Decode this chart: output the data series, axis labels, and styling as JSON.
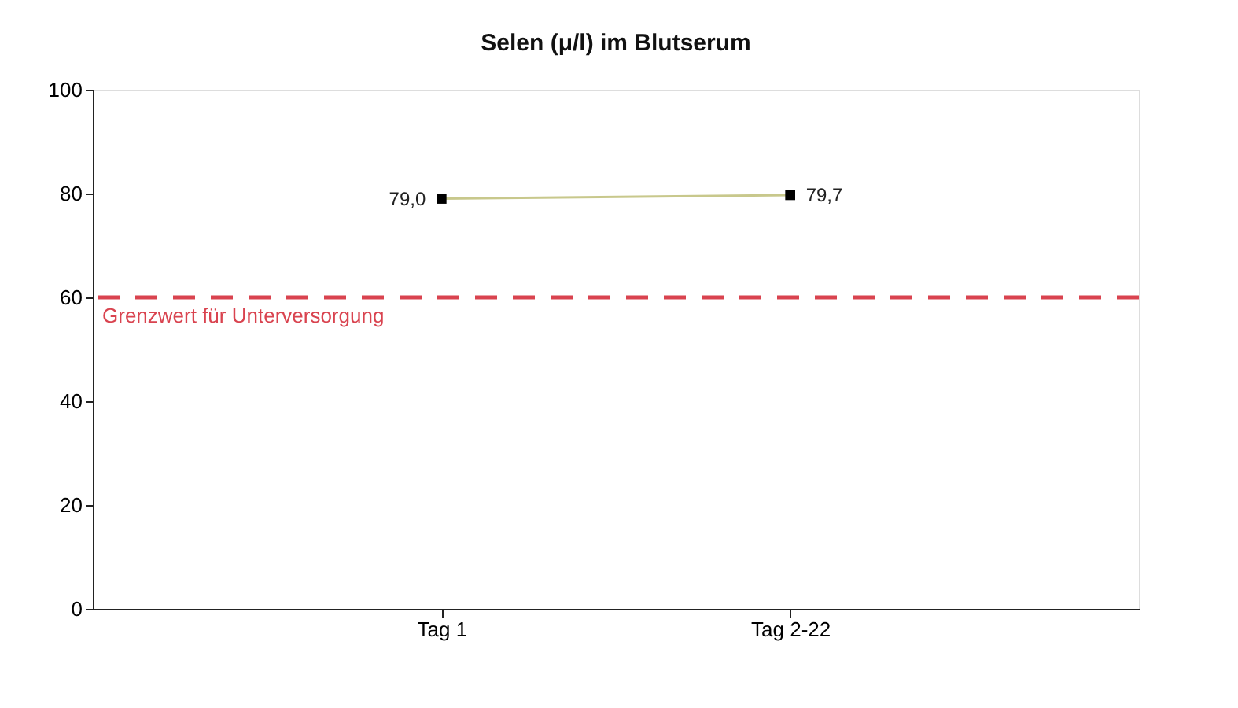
{
  "chart_data": {
    "type": "line",
    "title": "Selen (μ/l) im Blutserum",
    "categories": [
      "Tag 1",
      "Tag 2-22"
    ],
    "series": [
      {
        "color": "#c8c88c",
        "values": [
          79.0,
          79.7
        ],
        "value_labels": [
          "79,0",
          "79,7"
        ]
      }
    ],
    "marker": "square",
    "line_style": "solid",
    "ylim": [
      0,
      100
    ],
    "yticks": [
      0,
      20,
      40,
      60,
      80,
      100
    ],
    "grid": false,
    "ref_lines": [
      {
        "axis": "y",
        "value": 60,
        "label": "Grenzwert für Unterversorgung",
        "color": "#d9434f",
        "line_style": "dashed"
      }
    ]
  }
}
